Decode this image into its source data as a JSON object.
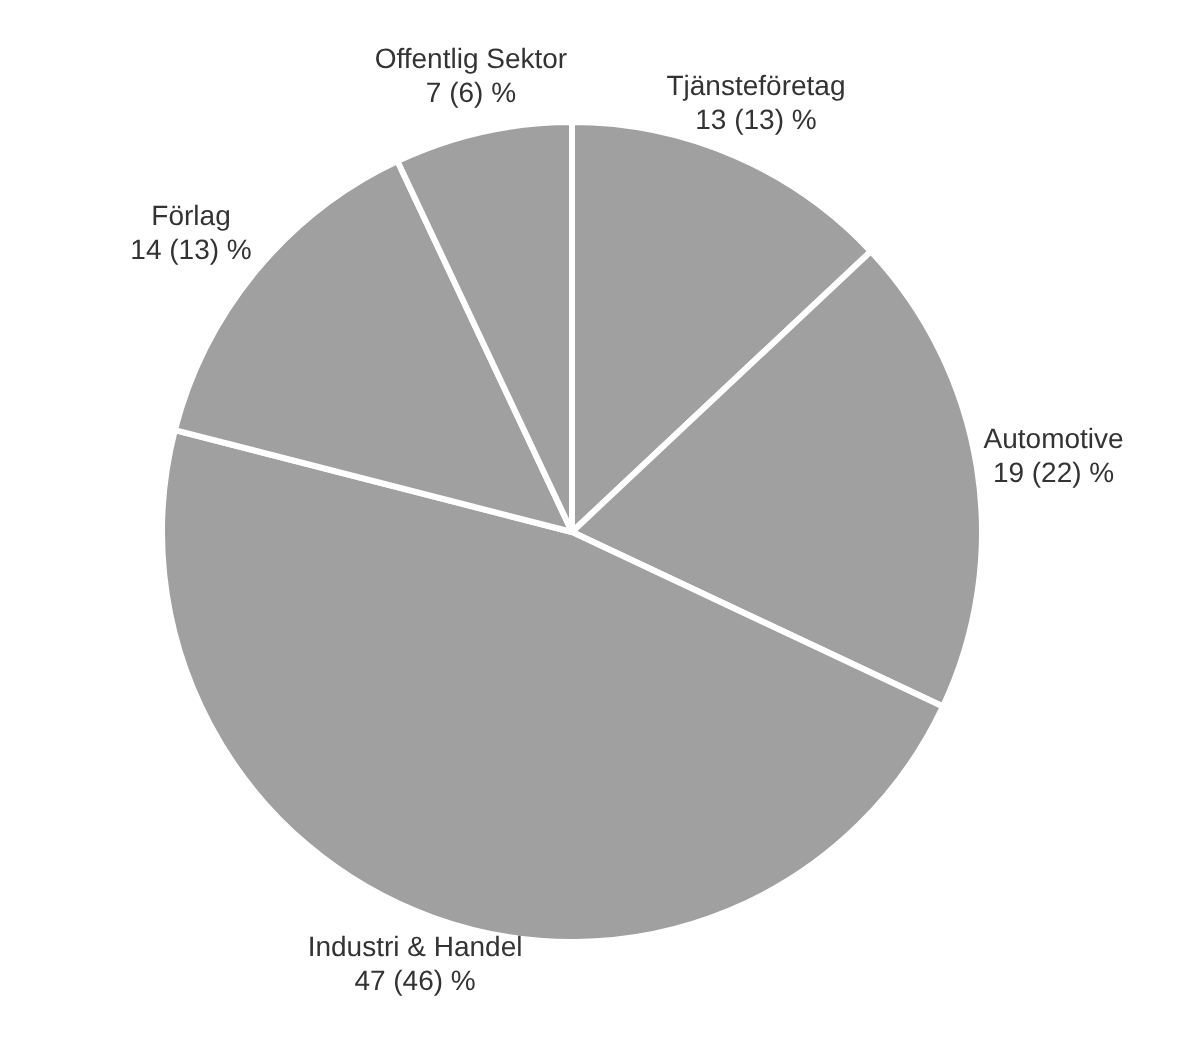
{
  "chart_data": {
    "type": "pie",
    "categories": [
      "Tjänsteföretag",
      "Automotive",
      "Industri & Handel",
      "Förlag",
      "Offentlig Sektor"
    ],
    "values": [
      13,
      19,
      47,
      14,
      7
    ],
    "value_labels": [
      "13 (13) %",
      "19 (22) %",
      "47 (46) %",
      "14 (13) %",
      "7 (6) %"
    ],
    "colors": [
      "#a0a0a0",
      "#a0a0a0",
      "#a0a0a0",
      "#a0a0a0",
      "#a0a0a0"
    ]
  }
}
